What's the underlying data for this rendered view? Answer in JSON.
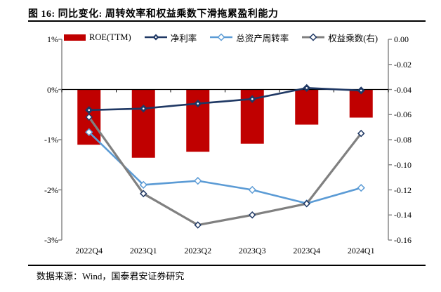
{
  "figure": {
    "title": "图 16: 同比变化: 周转效率和权益乘数下滑拖累盈利能力",
    "source": "数据来源：Wind，国泰君安证券研究"
  },
  "colors": {
    "bar": "#c00000",
    "net_margin_line": "#1f3864",
    "asset_turnover_line": "#5b9bd5",
    "equity_multiplier_line": "#808080",
    "axis": "#808080",
    "zero_line": "#000000"
  },
  "chart_data": {
    "type": "bar",
    "subtype": "bar+line combo, dual axis",
    "title": "同比变化: 周转效率和权益乘数下滑拖累盈利能力",
    "categories": [
      "2022Q4",
      "2023Q1",
      "2023Q2",
      "2023Q3",
      "2023Q4",
      "2024Q1"
    ],
    "series": [
      {
        "name": "ROE(TTM)",
        "type": "bar",
        "axis": "left",
        "unit": "%",
        "values": [
          -1.1,
          -1.36,
          -1.24,
          -1.08,
          -0.7,
          -0.56
        ]
      },
      {
        "name": "净利率",
        "type": "line",
        "axis": "left",
        "unit": "%",
        "values": [
          -0.41,
          -0.38,
          -0.28,
          -0.19,
          0.03,
          -0.02
        ]
      },
      {
        "name": "总资产周转率",
        "type": "line",
        "axis": "left",
        "unit": "%",
        "values": [
          -0.85,
          -1.9,
          -1.82,
          -2.0,
          -2.27,
          -1.96
        ]
      },
      {
        "name": "权益乘数(右)",
        "type": "line",
        "axis": "right",
        "unit": "",
        "values": [
          -0.062,
          -0.123,
          -0.148,
          -0.14,
          -0.131,
          -0.075
        ]
      }
    ],
    "left_axis": {
      "tick_labels": [
        "1%",
        "0%",
        "-1%",
        "-2%",
        "-3%"
      ],
      "range": [
        1,
        -3
      ]
    },
    "right_axis": {
      "tick_labels": [
        "0.00",
        "-0.02",
        "-0.04",
        "-0.06",
        "-0.08",
        "-0.10",
        "-0.12",
        "-0.14",
        "-0.16"
      ],
      "range": [
        0,
        -0.16
      ]
    },
    "legend_position": "top",
    "grid": "off"
  }
}
